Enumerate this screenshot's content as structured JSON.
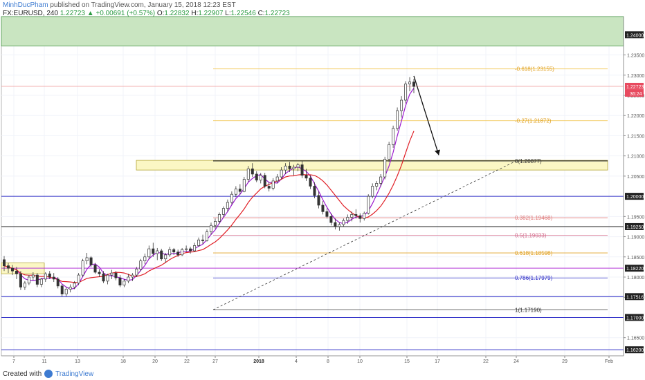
{
  "header": {
    "author": "MinhDucPham",
    "published_text": "published on TradingView.com, January 15, 2018 12:23 EST"
  },
  "symbol": {
    "name": "FX:EURUSD, 240",
    "price": "1.22723",
    "change": "+0.00691 (+0.57%)",
    "o_label": "O:",
    "o": "1.22832",
    "h_label": "H:",
    "h": "1.22907",
    "l_label": "L:",
    "l": "1.22546",
    "c_label": "C:",
    "c": "1.22723"
  },
  "footer": {
    "created_with": "Created with",
    "brand": "TradingView"
  },
  "colors": {
    "up": "#2a9a41",
    "grid": "#f0f3fa",
    "ma_fast": "#9b19cf",
    "ma_slow": "#e01f26",
    "fib": "#f2c85b",
    "resistance_zone": "#c9e5c1",
    "yellow_zone": "#fbf7c4",
    "blue_line": "#3030c8",
    "magenta_line": "#b438d6"
  },
  "chart_data": {
    "type": "candlestick",
    "symbol": "FX:EURUSD",
    "timeframe": "240",
    "ylim": [
      1.1605,
      1.2445
    ],
    "y_ticks": [
      "1.23500",
      "1.23000",
      "1.22500",
      "1.22000",
      "1.21500",
      "1.21000",
      "1.20500",
      "1.19500",
      "1.19000",
      "1.18500",
      "1.18000",
      "1.17500",
      "1.16500"
    ],
    "x_ticks": [
      "7",
      "11",
      "13",
      "18",
      "20",
      "22",
      "27",
      "2018",
      "4",
      "8",
      "10",
      "15",
      "17",
      "22",
      "24",
      "29",
      "Feb"
    ],
    "price_labels": [
      {
        "value": 1.24,
        "text": "1.24000",
        "style": "dark"
      },
      {
        "value": 1.22723,
        "text": "1.22723",
        "style": "red"
      },
      {
        "value": 1.2,
        "text": "1.20000",
        "style": "dark"
      },
      {
        "value": 1.1925,
        "text": "1.19250",
        "style": "dark"
      },
      {
        "value": 1.1822,
        "text": "1.18220",
        "style": "dark"
      },
      {
        "value": 1.17516,
        "text": "1.17516",
        "style": "dark"
      },
      {
        "value": 1.17,
        "text": "1.17000",
        "style": "dark"
      },
      {
        "value": 1.162,
        "text": "1.16200",
        "style": "dark"
      }
    ],
    "countdown": "36:24",
    "fib_levels": [
      {
        "ratio": "-0.618",
        "value": 1.23155,
        "label": "-0.618(1.23155)",
        "color": "#f2c85b"
      },
      {
        "ratio": "-0.27",
        "value": 1.21872,
        "label": "-0.27(1.21872)",
        "color": "#f2c85b"
      },
      {
        "ratio": "0",
        "value": 1.20877,
        "label": "0(1.20877)",
        "color": "#333333"
      },
      {
        "ratio": "0.382",
        "value": 1.19468,
        "label": "0.382(1.19468)",
        "color": "#e07a7a"
      },
      {
        "ratio": "0.5",
        "value": 1.19033,
        "label": "0.5(1.19033)",
        "color": "#d46a8a"
      },
      {
        "ratio": "0.618",
        "value": 1.18598,
        "label": "0.618(1.18598)",
        "color": "#e0a020"
      },
      {
        "ratio": "0.786",
        "value": 1.17979,
        "label": "0.786(1.17979)",
        "color": "#3030c8"
      },
      {
        "ratio": "1",
        "value": 1.1719,
        "label": "1(1.17190)",
        "color": "#333333"
      }
    ],
    "horizontal_lines": [
      {
        "value": 1.2,
        "color": "#3030c8"
      },
      {
        "value": 1.1925,
        "color": "#222222"
      },
      {
        "value": 1.1822,
        "color": "#b438d6"
      },
      {
        "value": 1.17516,
        "color": "#3030c8"
      },
      {
        "value": 1.17,
        "color": "#3030c8"
      },
      {
        "value": 1.162,
        "color": "#3030c8"
      }
    ],
    "zones": [
      {
        "name": "resistance-zone",
        "y_top": 1.2445,
        "y_bottom": 1.2372
      },
      {
        "name": "yellow-zone",
        "y_top": 1.2089,
        "y_bottom": 1.2065
      },
      {
        "name": "support-box",
        "y_top": 1.1835,
        "y_bottom": 1.1808
      }
    ],
    "candles": [
      [
        1.1843,
        1.1852,
        1.1815,
        1.1828
      ],
      [
        1.1828,
        1.1835,
        1.181,
        1.1822
      ],
      [
        1.1822,
        1.183,
        1.1805,
        1.1815
      ],
      [
        1.1815,
        1.1825,
        1.1795,
        1.1808
      ],
      [
        1.1808,
        1.1815,
        1.1768,
        1.1775
      ],
      [
        1.1775,
        1.179,
        1.1768,
        1.1785
      ],
      [
        1.1785,
        1.1805,
        1.178,
        1.18
      ],
      [
        1.18,
        1.1812,
        1.1792,
        1.1805
      ],
      [
        1.1805,
        1.181,
        1.1775,
        1.1782
      ],
      [
        1.1782,
        1.1798,
        1.1775,
        1.1795
      ],
      [
        1.1795,
        1.1812,
        1.1788,
        1.1808
      ],
      [
        1.1808,
        1.1815,
        1.1795,
        1.18
      ],
      [
        1.18,
        1.181,
        1.1788,
        1.1795
      ],
      [
        1.1795,
        1.18,
        1.1772,
        1.1778
      ],
      [
        1.1778,
        1.1782,
        1.1752,
        1.1758
      ],
      [
        1.1758,
        1.1775,
        1.1752,
        1.177
      ],
      [
        1.177,
        1.1782,
        1.1762,
        1.1775
      ],
      [
        1.1775,
        1.179,
        1.177,
        1.1785
      ],
      [
        1.1785,
        1.181,
        1.178,
        1.1805
      ],
      [
        1.1805,
        1.1845,
        1.18,
        1.184
      ],
      [
        1.184,
        1.186,
        1.1832,
        1.1848
      ],
      [
        1.1848,
        1.1852,
        1.1825,
        1.183
      ],
      [
        1.183,
        1.1835,
        1.1808,
        1.1812
      ],
      [
        1.1812,
        1.182,
        1.18,
        1.1808
      ],
      [
        1.1808,
        1.1815,
        1.1785,
        1.179
      ],
      [
        1.179,
        1.1808,
        1.1782,
        1.1805
      ],
      [
        1.1805,
        1.1818,
        1.1795,
        1.181
      ],
      [
        1.181,
        1.1815,
        1.1792,
        1.1798
      ],
      [
        1.1798,
        1.1805,
        1.1775,
        1.178
      ],
      [
        1.178,
        1.1795,
        1.1775,
        1.179
      ],
      [
        1.179,
        1.1808,
        1.1785,
        1.18
      ],
      [
        1.18,
        1.181,
        1.179,
        1.1805
      ],
      [
        1.1805,
        1.1825,
        1.18,
        1.182
      ],
      [
        1.182,
        1.1845,
        1.1815,
        1.184
      ],
      [
        1.184,
        1.1858,
        1.1832,
        1.185
      ],
      [
        1.185,
        1.1878,
        1.1845,
        1.187
      ],
      [
        1.187,
        1.1885,
        1.185,
        1.1858
      ],
      [
        1.1858,
        1.1872,
        1.1842,
        1.1865
      ],
      [
        1.1865,
        1.187,
        1.184,
        1.1845
      ],
      [
        1.1845,
        1.186,
        1.1835,
        1.1855
      ],
      [
        1.1855,
        1.1875,
        1.185,
        1.1868
      ],
      [
        1.1868,
        1.1872,
        1.1855,
        1.1862
      ],
      [
        1.1862,
        1.1868,
        1.185,
        1.1855
      ],
      [
        1.1855,
        1.1872,
        1.1852,
        1.1868
      ],
      [
        1.1868,
        1.1878,
        1.1862,
        1.187
      ],
      [
        1.187,
        1.1875,
        1.1858,
        1.1865
      ],
      [
        1.1865,
        1.1885,
        1.1862,
        1.1878
      ],
      [
        1.1878,
        1.1898,
        1.1875,
        1.1892
      ],
      [
        1.1892,
        1.1905,
        1.1882,
        1.189
      ],
      [
        1.189,
        1.1918,
        1.1888,
        1.1912
      ],
      [
        1.1912,
        1.1935,
        1.1905,
        1.1928
      ],
      [
        1.1928,
        1.1945,
        1.192,
        1.1938
      ],
      [
        1.1938,
        1.196,
        1.1932,
        1.1955
      ],
      [
        1.1955,
        1.1975,
        1.1948,
        1.197
      ],
      [
        1.197,
        1.1992,
        1.1962,
        1.1985
      ],
      [
        1.1985,
        1.2012,
        1.198,
        1.2005
      ],
      [
        1.2005,
        1.2025,
        1.1998,
        1.2018
      ],
      [
        1.2018,
        1.203,
        1.2005,
        1.2012
      ],
      [
        1.2012,
        1.2048,
        1.201,
        1.2042
      ],
      [
        1.2042,
        1.2075,
        1.2035,
        1.2068
      ],
      [
        1.2068,
        1.2082,
        1.2048,
        1.2055
      ],
      [
        1.2055,
        1.2062,
        1.2035,
        1.204
      ],
      [
        1.204,
        1.2058,
        1.2032,
        1.2052
      ],
      [
        1.2052,
        1.2058,
        1.202,
        1.2025
      ],
      [
        1.2025,
        1.2035,
        1.2012,
        1.202
      ],
      [
        1.202,
        1.2045,
        1.2015,
        1.2038
      ],
      [
        1.2038,
        1.2055,
        1.2032,
        1.2048
      ],
      [
        1.2048,
        1.2072,
        1.2042,
        1.2065
      ],
      [
        1.2065,
        1.2082,
        1.2055,
        1.2075
      ],
      [
        1.2075,
        1.2085,
        1.206,
        1.2068
      ],
      [
        1.2068,
        1.2078,
        1.2052,
        1.2072
      ],
      [
        1.2072,
        1.2082,
        1.2062,
        1.2078
      ],
      [
        1.2078,
        1.2088,
        1.2045,
        1.2052
      ],
      [
        1.2052,
        1.2068,
        1.2038,
        1.2045
      ],
      [
        1.2045,
        1.2052,
        1.2018,
        1.2025
      ],
      [
        1.2025,
        1.2035,
        1.1995,
        1.2002
      ],
      [
        1.2002,
        1.2012,
        1.197,
        1.1978
      ],
      [
        1.1978,
        1.1988,
        1.1955,
        1.1962
      ],
      [
        1.1962,
        1.197,
        1.1945,
        1.195
      ],
      [
        1.195,
        1.1958,
        1.1928,
        1.1935
      ],
      [
        1.1935,
        1.1945,
        1.1918,
        1.1925
      ],
      [
        1.1925,
        1.1935,
        1.1915,
        1.193
      ],
      [
        1.193,
        1.1945,
        1.1925,
        1.194
      ],
      [
        1.194,
        1.1955,
        1.1932,
        1.1948
      ],
      [
        1.1948,
        1.1962,
        1.1938,
        1.1955
      ],
      [
        1.1955,
        1.1968,
        1.1945,
        1.1952
      ],
      [
        1.1952,
        1.1958,
        1.1935,
        1.1945
      ],
      [
        1.1945,
        1.1962,
        1.194,
        1.1958
      ],
      [
        1.1958,
        1.2005,
        1.1955,
        1.2
      ],
      [
        1.2,
        1.2032,
        1.1995,
        1.2025
      ],
      [
        1.2025,
        1.2038,
        1.2015,
        1.2032
      ],
      [
        1.2032,
        1.2055,
        1.2025,
        1.2048
      ],
      [
        1.2048,
        1.2098,
        1.2042,
        1.2092
      ],
      [
        1.2092,
        1.2135,
        1.2085,
        1.2128
      ],
      [
        1.2128,
        1.2175,
        1.212,
        1.2168
      ],
      [
        1.2168,
        1.222,
        1.2162,
        1.2212
      ],
      [
        1.2212,
        1.2248,
        1.2195,
        1.2238
      ],
      [
        1.2238,
        1.2285,
        1.223,
        1.2278
      ],
      [
        1.2278,
        1.2295,
        1.226,
        1.2283
      ],
      [
        1.2283,
        1.2291,
        1.2255,
        1.2272
      ]
    ],
    "trendline_from": {
      "x_label": "27",
      "value": 1.1719
    },
    "trendline_to": {
      "x_label": "24",
      "value": 1.20877
    },
    "projection_arrow": {
      "from_value": 1.2298,
      "to_value": 1.2102
    }
  }
}
